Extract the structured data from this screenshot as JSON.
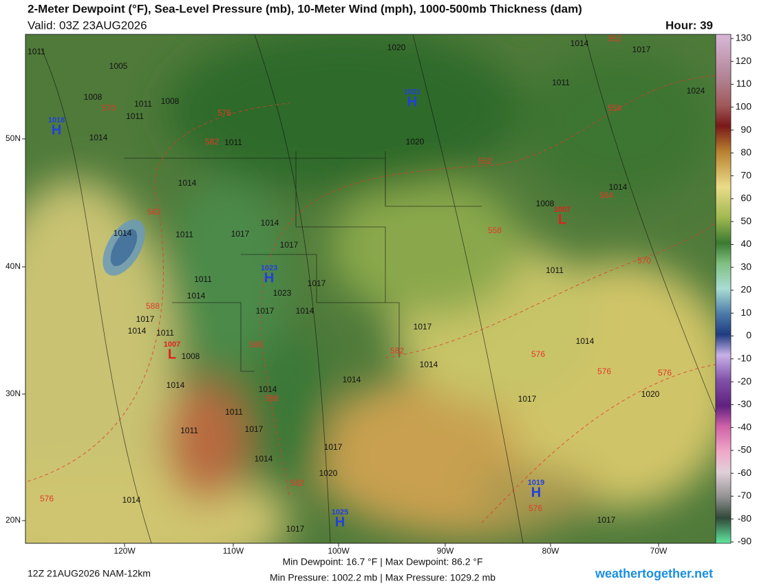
{
  "header": {
    "title": "2-Meter Dewpoint (°F), Sea-Level Pressure (mb), 10-Meter Wind (mph), 1000-500mb Thickness (dam)",
    "valid": "Valid: 03Z 23AUG2026",
    "hour": "Hour: 39"
  },
  "map": {
    "lat_labels": [
      "50N",
      "40N",
      "30N",
      "20N"
    ],
    "lon_labels": [
      "120W",
      "110W",
      "100W",
      "90W",
      "80W",
      "70W"
    ],
    "pressure_centers": [
      {
        "type": "H",
        "value": "1021"
      },
      {
        "type": "H",
        "value": "1018"
      },
      {
        "type": "H",
        "value": "1023"
      },
      {
        "type": "L",
        "value": "1007"
      },
      {
        "type": "L",
        "value": "1007"
      },
      {
        "type": "H",
        "value": "1019"
      },
      {
        "type": "H",
        "value": "1025"
      }
    ],
    "isobar_labels": [
      "1011",
      "1005",
      "1008",
      "1011",
      "1008",
      "1011",
      "1014",
      "1011",
      "1020",
      "1014",
      "1017",
      "1011",
      "1020",
      "1014",
      "1014",
      "1011",
      "1014",
      "1017",
      "1017",
      "1011",
      "1014",
      "1017",
      "1023",
      "1017",
      "1014",
      "1017",
      "1014",
      "1011",
      "1008",
      "1014",
      "1014",
      "1011",
      "1017",
      "1011",
      "1014",
      "1017",
      "1020",
      "1017",
      "1014",
      "1014",
      "1011",
      "1014",
      "1017",
      "1020",
      "1014",
      "1008",
      "1014",
      "1017",
      "1017",
      "1024"
    ],
    "thickness_labels": [
      "570",
      "576",
      "582",
      "552",
      "558",
      "552",
      "564",
      "558",
      "570",
      "582",
      "588",
      "588",
      "582",
      "588",
      "576",
      "576",
      "576",
      "582",
      "576",
      "576"
    ]
  },
  "colorbar": {
    "ticks": [
      130,
      120,
      110,
      100,
      90,
      80,
      70,
      60,
      50,
      40,
      30,
      20,
      10,
      0,
      -10,
      -20,
      -30,
      -40,
      -50,
      -60,
      -70,
      -80,
      -90
    ]
  },
  "footer": {
    "run": "12Z 21AUG2026 NAM-12km",
    "stats": [
      "Min Dewpoint:  16.7 °F | Max Dewpoint:  86.2 °F",
      "Min Pressure: 1002.2 mb | Max Pressure: 1029.2 mb"
    ],
    "site": "weathertogether.net"
  }
}
